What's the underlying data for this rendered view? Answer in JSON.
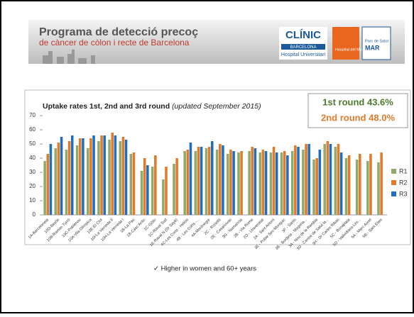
{
  "header": {
    "title": "Programa de detecció precoç",
    "subtitle": "de càncer de còlon i recte de Barcelona",
    "logos": [
      "CLÍNIC",
      "BARCELONA",
      "Hospital Universitari",
      "Hospital del Mar",
      "Parc de Salut",
      "MAR"
    ]
  },
  "chart_data": {
    "type": "bar",
    "title": "Uptake rates 1st, 2nd and 3rd round",
    "title_note": "(updated September 2015)",
    "annotations": [
      {
        "text": "1st round 43.6%",
        "color": "#4e7a2e"
      },
      {
        "text": "2nd round 48.0%",
        "color": "#e07b2a"
      }
    ],
    "categories": [
      "1A-Barceloneta",
      "10D-Besòs",
      "10B-Ramon Turró",
      "10C-Poblenou",
      "10A-Vila Olímpica",
      "10E-El Clot",
      "10I-La Verneda II",
      "10H-La Verneda I",
      "1B-La Pau",
      "1B-Casc Antic",
      "1C-Gòtic",
      "1C-Raval Sud",
      "1E-Raval N (Dr Sayé)",
      "4C-Les Corts - Helios",
      "4B - Les Corts -...",
      "4A-Montnegre",
      "2C - Roselló",
      "2E - Casanovas",
      "3G - Numancia",
      "2B - Via Roma",
      "2D - Universitat",
      "2A - Sant Antoni",
      "3E - Poble Sec-Montjuic",
      "3F - Sants",
      "3B - Bordeta - Magoria...",
      "3A - Nou de la Rambla",
      "3D - Centre de Salut la...",
      "3H - Dr Carles Ribas",
      "5C - Bonaplata",
      "5D - Vallvidrera-Les...",
      "5A - Marc Aurel",
      "5B - Sant Elies"
    ],
    "series": [
      {
        "name": "R1",
        "color": "#8faa6c",
        "values": [
          38,
          47,
          46,
          49,
          47,
          52,
          53,
          52,
          43,
          31,
          34,
          25,
          36,
          45,
          45,
          47,
          46,
          43,
          44,
          45,
          44,
          44,
          44,
          45,
          46,
          39,
          50,
          48,
          40,
          39,
          38,
          37
        ]
      },
      {
        "name": "R2",
        "color": "#e07b2a",
        "values": [
          43,
          51,
          52,
          54,
          54,
          56,
          58,
          55,
          44,
          40,
          42,
          34,
          40,
          46,
          48,
          48,
          50,
          46,
          45,
          48,
          46,
          48,
          45,
          49,
          50,
          40,
          52,
          50,
          42,
          43,
          43,
          44
        ]
      },
      {
        "name": "R3",
        "color": "#1f6fbe",
        "values": [
          50,
          55,
          56,
          54,
          56,
          56,
          56,
          53,
          null,
          35,
          null,
          null,
          null,
          51,
          48,
          52,
          49,
          45,
          null,
          47,
          45,
          44,
          42,
          48,
          50,
          46,
          50,
          44,
          null,
          null,
          null,
          null
        ]
      }
    ],
    "ylim": [
      0,
      70
    ],
    "yticks": [
      0,
      10,
      20,
      30,
      40,
      50,
      60,
      70
    ],
    "grid": false,
    "legend": "right"
  },
  "caption": "✓  Higher in women and 60+ years"
}
